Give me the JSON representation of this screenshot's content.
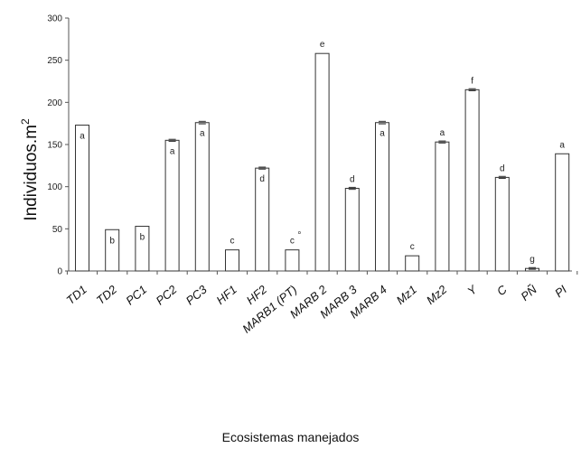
{
  "chart_data": {
    "type": "bar",
    "xlabel": "Ecosistemas manejados",
    "ylabel": "Individuos.m",
    "ylabel_superscript": "2",
    "ylim": [
      0,
      300
    ],
    "yticks": [
      "0",
      "50",
      "100",
      "150",
      "200",
      "250",
      "300"
    ],
    "grid": false,
    "legend": "none",
    "categories": [
      "TD1",
      "TD2",
      "PC1",
      "PC2",
      "PC3",
      "HF1",
      "HF2",
      "MARB1 (PT)",
      "MARB 2",
      "MARB 3",
      "MARB 4",
      "Mz1",
      "Mz2",
      "Y",
      "C",
      "PÑ",
      "PI"
    ],
    "values": [
      173,
      49,
      53,
      155,
      176,
      25,
      122,
      25,
      258,
      98,
      176,
      18,
      153,
      215,
      111,
      3,
      139
    ],
    "error": [
      0,
      0,
      0,
      1.2,
      1.5,
      0,
      1.2,
      0,
      0,
      1.2,
      1.5,
      0,
      1.2,
      1.2,
      1.2,
      1,
      0
    ],
    "significance_letters": [
      "a",
      "b",
      "b",
      "a",
      "a",
      "c",
      "d",
      "c",
      "e",
      "d",
      "a",
      "c",
      "a",
      "f",
      "d",
      "g",
      "a"
    ],
    "significance_inside_bar": [
      true,
      true,
      true,
      true,
      true,
      false,
      true,
      false,
      false,
      false,
      true,
      false,
      false,
      false,
      false,
      false,
      false
    ],
    "extra_marks": [
      "",
      "",
      "",
      "",
      "",
      "",
      "",
      "°",
      "",
      "",
      "",
      "",
      "",
      "",
      "",
      "",
      ""
    ],
    "bar_fill": "#ffffff",
    "bar_stroke": "#333333"
  }
}
